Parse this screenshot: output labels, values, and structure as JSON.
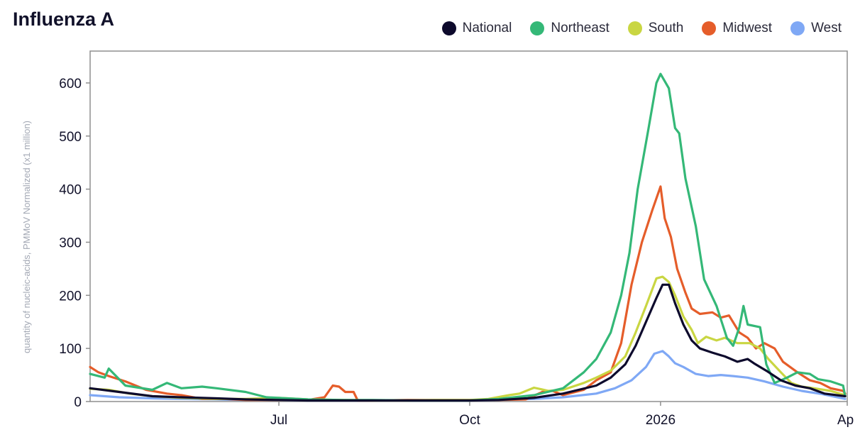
{
  "chart_data": {
    "type": "line",
    "title": "Influenza A",
    "ylabel": "quantity of nucleic-acids, PMMoV Normalized (x1 million)",
    "xlabel": "",
    "ylim": [
      0,
      660
    ],
    "y_ticks": [
      0,
      100,
      200,
      300,
      400,
      500,
      600
    ],
    "y_tick_labels": [
      "0",
      "100",
      "200",
      "300",
      "400",
      "500",
      "600"
    ],
    "x_domain": [
      "2025-04-01",
      "2026-04-01"
    ],
    "x_ticks": [
      {
        "date": "2025-07-01",
        "label": "Jul"
      },
      {
        "date": "2025-10-01",
        "label": "Oct"
      },
      {
        "date": "2026-01-01",
        "label": "2026"
      },
      {
        "date": "2026-04-01",
        "label": "Ap"
      }
    ],
    "grid": false,
    "legend_position": "top-right",
    "series": [
      {
        "name": "National",
        "color": "#0d0a2c",
        "points": [
          [
            "2025-04-01",
            25
          ],
          [
            "2025-04-15",
            18
          ],
          [
            "2025-05-01",
            10
          ],
          [
            "2025-05-15",
            8
          ],
          [
            "2025-06-01",
            6
          ],
          [
            "2025-06-15",
            4
          ],
          [
            "2025-07-01",
            3
          ],
          [
            "2025-07-15",
            2
          ],
          [
            "2025-08-01",
            2
          ],
          [
            "2025-08-15",
            2
          ],
          [
            "2025-09-01",
            2
          ],
          [
            "2025-09-15",
            2
          ],
          [
            "2025-10-01",
            2
          ],
          [
            "2025-10-15",
            3
          ],
          [
            "2025-11-01",
            7
          ],
          [
            "2025-11-15",
            15
          ],
          [
            "2025-12-01",
            30
          ],
          [
            "2025-12-08",
            45
          ],
          [
            "2025-12-15",
            70
          ],
          [
            "2025-12-20",
            105
          ],
          [
            "2025-12-25",
            150
          ],
          [
            "2025-12-30",
            195
          ],
          [
            "2026-01-02",
            220
          ],
          [
            "2026-01-05",
            220
          ],
          [
            "2026-01-08",
            185
          ],
          [
            "2026-01-12",
            145
          ],
          [
            "2026-01-16",
            115
          ],
          [
            "2026-01-20",
            100
          ],
          [
            "2026-01-26",
            92
          ],
          [
            "2026-02-01",
            85
          ],
          [
            "2026-02-07",
            75
          ],
          [
            "2026-02-12",
            80
          ],
          [
            "2026-02-15",
            72
          ],
          [
            "2026-02-21",
            58
          ],
          [
            "2026-02-28",
            40
          ],
          [
            "2026-03-07",
            30
          ],
          [
            "2026-03-14",
            25
          ],
          [
            "2026-03-21",
            15
          ],
          [
            "2026-03-31",
            10
          ]
        ]
      },
      {
        "name": "Northeast",
        "color": "#34b877",
        "points": [
          [
            "2025-04-01",
            52
          ],
          [
            "2025-04-08",
            45
          ],
          [
            "2025-04-10",
            62
          ],
          [
            "2025-04-18",
            30
          ],
          [
            "2025-05-01",
            22
          ],
          [
            "2025-05-08",
            35
          ],
          [
            "2025-05-15",
            25
          ],
          [
            "2025-05-25",
            28
          ],
          [
            "2025-06-01",
            25
          ],
          [
            "2025-06-15",
            18
          ],
          [
            "2025-06-25",
            8
          ],
          [
            "2025-07-05",
            6
          ],
          [
            "2025-07-15",
            4
          ],
          [
            "2025-08-01",
            3
          ],
          [
            "2025-08-15",
            3
          ],
          [
            "2025-09-01",
            2
          ],
          [
            "2025-09-15",
            2
          ],
          [
            "2025-10-01",
            2
          ],
          [
            "2025-10-15",
            5
          ],
          [
            "2025-11-01",
            12
          ],
          [
            "2025-11-15",
            25
          ],
          [
            "2025-11-25",
            55
          ],
          [
            "2025-12-01",
            80
          ],
          [
            "2025-12-08",
            130
          ],
          [
            "2025-12-13",
            200
          ],
          [
            "2025-12-17",
            280
          ],
          [
            "2025-12-21",
            400
          ],
          [
            "2025-12-26",
            510
          ],
          [
            "2025-12-30",
            600
          ],
          [
            "2026-01-01",
            617
          ],
          [
            "2026-01-05",
            590
          ],
          [
            "2026-01-08",
            515
          ],
          [
            "2026-01-10",
            505
          ],
          [
            "2026-01-13",
            420
          ],
          [
            "2026-01-18",
            330
          ],
          [
            "2026-01-22",
            230
          ],
          [
            "2026-01-28",
            180
          ],
          [
            "2026-02-02",
            120
          ],
          [
            "2026-02-05",
            105
          ],
          [
            "2026-02-08",
            140
          ],
          [
            "2026-02-10",
            180
          ],
          [
            "2026-02-12",
            145
          ],
          [
            "2026-02-18",
            140
          ],
          [
            "2026-02-21",
            70
          ],
          [
            "2026-02-25",
            35
          ],
          [
            "2026-03-03",
            45
          ],
          [
            "2026-03-08",
            55
          ],
          [
            "2026-03-14",
            52
          ],
          [
            "2026-03-18",
            42
          ],
          [
            "2026-03-24",
            38
          ],
          [
            "2026-03-30",
            30
          ],
          [
            "2026-03-31",
            10
          ]
        ]
      },
      {
        "name": "South",
        "color": "#c9d642",
        "points": [
          [
            "2025-04-01",
            24
          ],
          [
            "2025-04-10",
            22
          ],
          [
            "2025-04-20",
            15
          ],
          [
            "2025-05-01",
            10
          ],
          [
            "2025-05-15",
            7
          ],
          [
            "2025-06-01",
            5
          ],
          [
            "2025-06-15",
            5
          ],
          [
            "2025-07-01",
            7
          ],
          [
            "2025-07-15",
            4
          ],
          [
            "2025-08-01",
            3
          ],
          [
            "2025-08-15",
            2
          ],
          [
            "2025-09-01",
            2
          ],
          [
            "2025-09-15",
            3
          ],
          [
            "2025-10-01",
            3
          ],
          [
            "2025-10-10",
            5
          ],
          [
            "2025-10-20",
            12
          ],
          [
            "2025-10-25",
            15
          ],
          [
            "2025-11-01",
            26
          ],
          [
            "2025-11-08",
            20
          ],
          [
            "2025-11-15",
            22
          ],
          [
            "2025-11-25",
            35
          ],
          [
            "2025-12-01",
            45
          ],
          [
            "2025-12-08",
            58
          ],
          [
            "2025-12-15",
            85
          ],
          [
            "2025-12-20",
            130
          ],
          [
            "2025-12-25",
            180
          ],
          [
            "2025-12-30",
            232
          ],
          [
            "2026-01-02",
            235
          ],
          [
            "2026-01-05",
            225
          ],
          [
            "2026-01-08",
            200
          ],
          [
            "2026-01-12",
            160
          ],
          [
            "2026-01-16",
            135
          ],
          [
            "2026-01-19",
            110
          ],
          [
            "2026-01-23",
            122
          ],
          [
            "2026-01-28",
            115
          ],
          [
            "2026-02-01",
            120
          ],
          [
            "2026-02-07",
            110
          ],
          [
            "2026-02-13",
            110
          ],
          [
            "2026-02-18",
            100
          ],
          [
            "2026-02-22",
            80
          ],
          [
            "2026-02-28",
            55
          ],
          [
            "2026-03-05",
            35
          ],
          [
            "2026-03-10",
            28
          ],
          [
            "2026-03-16",
            25
          ],
          [
            "2026-03-24",
            20
          ],
          [
            "2026-03-31",
            12
          ]
        ]
      },
      {
        "name": "Midwest",
        "color": "#e55d2a",
        "points": [
          [
            "2025-04-01",
            65
          ],
          [
            "2025-04-05",
            55
          ],
          [
            "2025-04-10",
            48
          ],
          [
            "2025-04-18",
            38
          ],
          [
            "2025-04-28",
            22
          ],
          [
            "2025-05-08",
            15
          ],
          [
            "2025-05-15",
            12
          ],
          [
            "2025-05-25",
            5
          ],
          [
            "2025-06-05",
            5
          ],
          [
            "2025-06-15",
            3
          ],
          [
            "2025-07-01",
            3
          ],
          [
            "2025-07-15",
            3
          ],
          [
            "2025-07-23",
            8
          ],
          [
            "2025-07-27",
            30
          ],
          [
            "2025-07-30",
            28
          ],
          [
            "2025-08-02",
            18
          ],
          [
            "2025-08-06",
            18
          ],
          [
            "2025-08-08",
            2
          ],
          [
            "2025-08-15",
            2
          ],
          [
            "2025-09-01",
            3
          ],
          [
            "2025-09-15",
            3
          ],
          [
            "2025-10-01",
            3
          ],
          [
            "2025-10-15",
            3
          ],
          [
            "2025-10-28",
            4
          ],
          [
            "2025-11-05",
            18
          ],
          [
            "2025-11-10",
            20
          ],
          [
            "2025-11-15",
            12
          ],
          [
            "2025-11-25",
            22
          ],
          [
            "2025-12-01",
            40
          ],
          [
            "2025-12-08",
            55
          ],
          [
            "2025-12-13",
            110
          ],
          [
            "2025-12-18",
            220
          ],
          [
            "2025-12-23",
            300
          ],
          [
            "2025-12-28",
            360
          ],
          [
            "2026-01-01",
            405
          ],
          [
            "2026-01-03",
            345
          ],
          [
            "2026-01-06",
            310
          ],
          [
            "2026-01-09",
            250
          ],
          [
            "2026-01-13",
            205
          ],
          [
            "2026-01-16",
            175
          ],
          [
            "2026-01-20",
            165
          ],
          [
            "2026-01-26",
            168
          ],
          [
            "2026-01-30",
            158
          ],
          [
            "2026-02-03",
            162
          ],
          [
            "2026-02-08",
            130
          ],
          [
            "2026-02-12",
            120
          ],
          [
            "2026-02-16",
            100
          ],
          [
            "2026-02-20",
            110
          ],
          [
            "2026-02-25",
            100
          ],
          [
            "2026-03-01",
            75
          ],
          [
            "2026-03-08",
            55
          ],
          [
            "2026-03-14",
            40
          ],
          [
            "2026-03-19",
            35
          ],
          [
            "2026-03-24",
            25
          ],
          [
            "2026-03-30",
            20
          ],
          [
            "2026-03-31",
            15
          ]
        ]
      },
      {
        "name": "West",
        "color": "#7fa8f5",
        "points": [
          [
            "2025-04-01",
            12
          ],
          [
            "2025-04-15",
            8
          ],
          [
            "2025-05-01",
            6
          ],
          [
            "2025-05-15",
            5
          ],
          [
            "2025-06-01",
            4
          ],
          [
            "2025-06-15",
            3
          ],
          [
            "2025-07-01",
            3
          ],
          [
            "2025-07-15",
            2
          ],
          [
            "2025-08-01",
            2
          ],
          [
            "2025-08-15",
            2
          ],
          [
            "2025-09-01",
            2
          ],
          [
            "2025-09-15",
            2
          ],
          [
            "2025-10-01",
            2
          ],
          [
            "2025-10-15",
            3
          ],
          [
            "2025-11-01",
            5
          ],
          [
            "2025-11-15",
            8
          ],
          [
            "2025-12-01",
            15
          ],
          [
            "2025-12-10",
            25
          ],
          [
            "2025-12-18",
            40
          ],
          [
            "2025-12-25",
            65
          ],
          [
            "2025-12-29",
            90
          ],
          [
            "2026-01-02",
            95
          ],
          [
            "2026-01-05",
            85
          ],
          [
            "2026-01-08",
            72
          ],
          [
            "2026-01-12",
            65
          ],
          [
            "2026-01-18",
            52
          ],
          [
            "2026-01-24",
            48
          ],
          [
            "2026-01-30",
            50
          ],
          [
            "2026-02-05",
            48
          ],
          [
            "2026-02-12",
            45
          ],
          [
            "2026-02-20",
            38
          ],
          [
            "2026-03-01",
            28
          ],
          [
            "2026-03-10",
            20
          ],
          [
            "2026-03-20",
            14
          ],
          [
            "2026-03-31",
            5
          ]
        ]
      }
    ]
  }
}
